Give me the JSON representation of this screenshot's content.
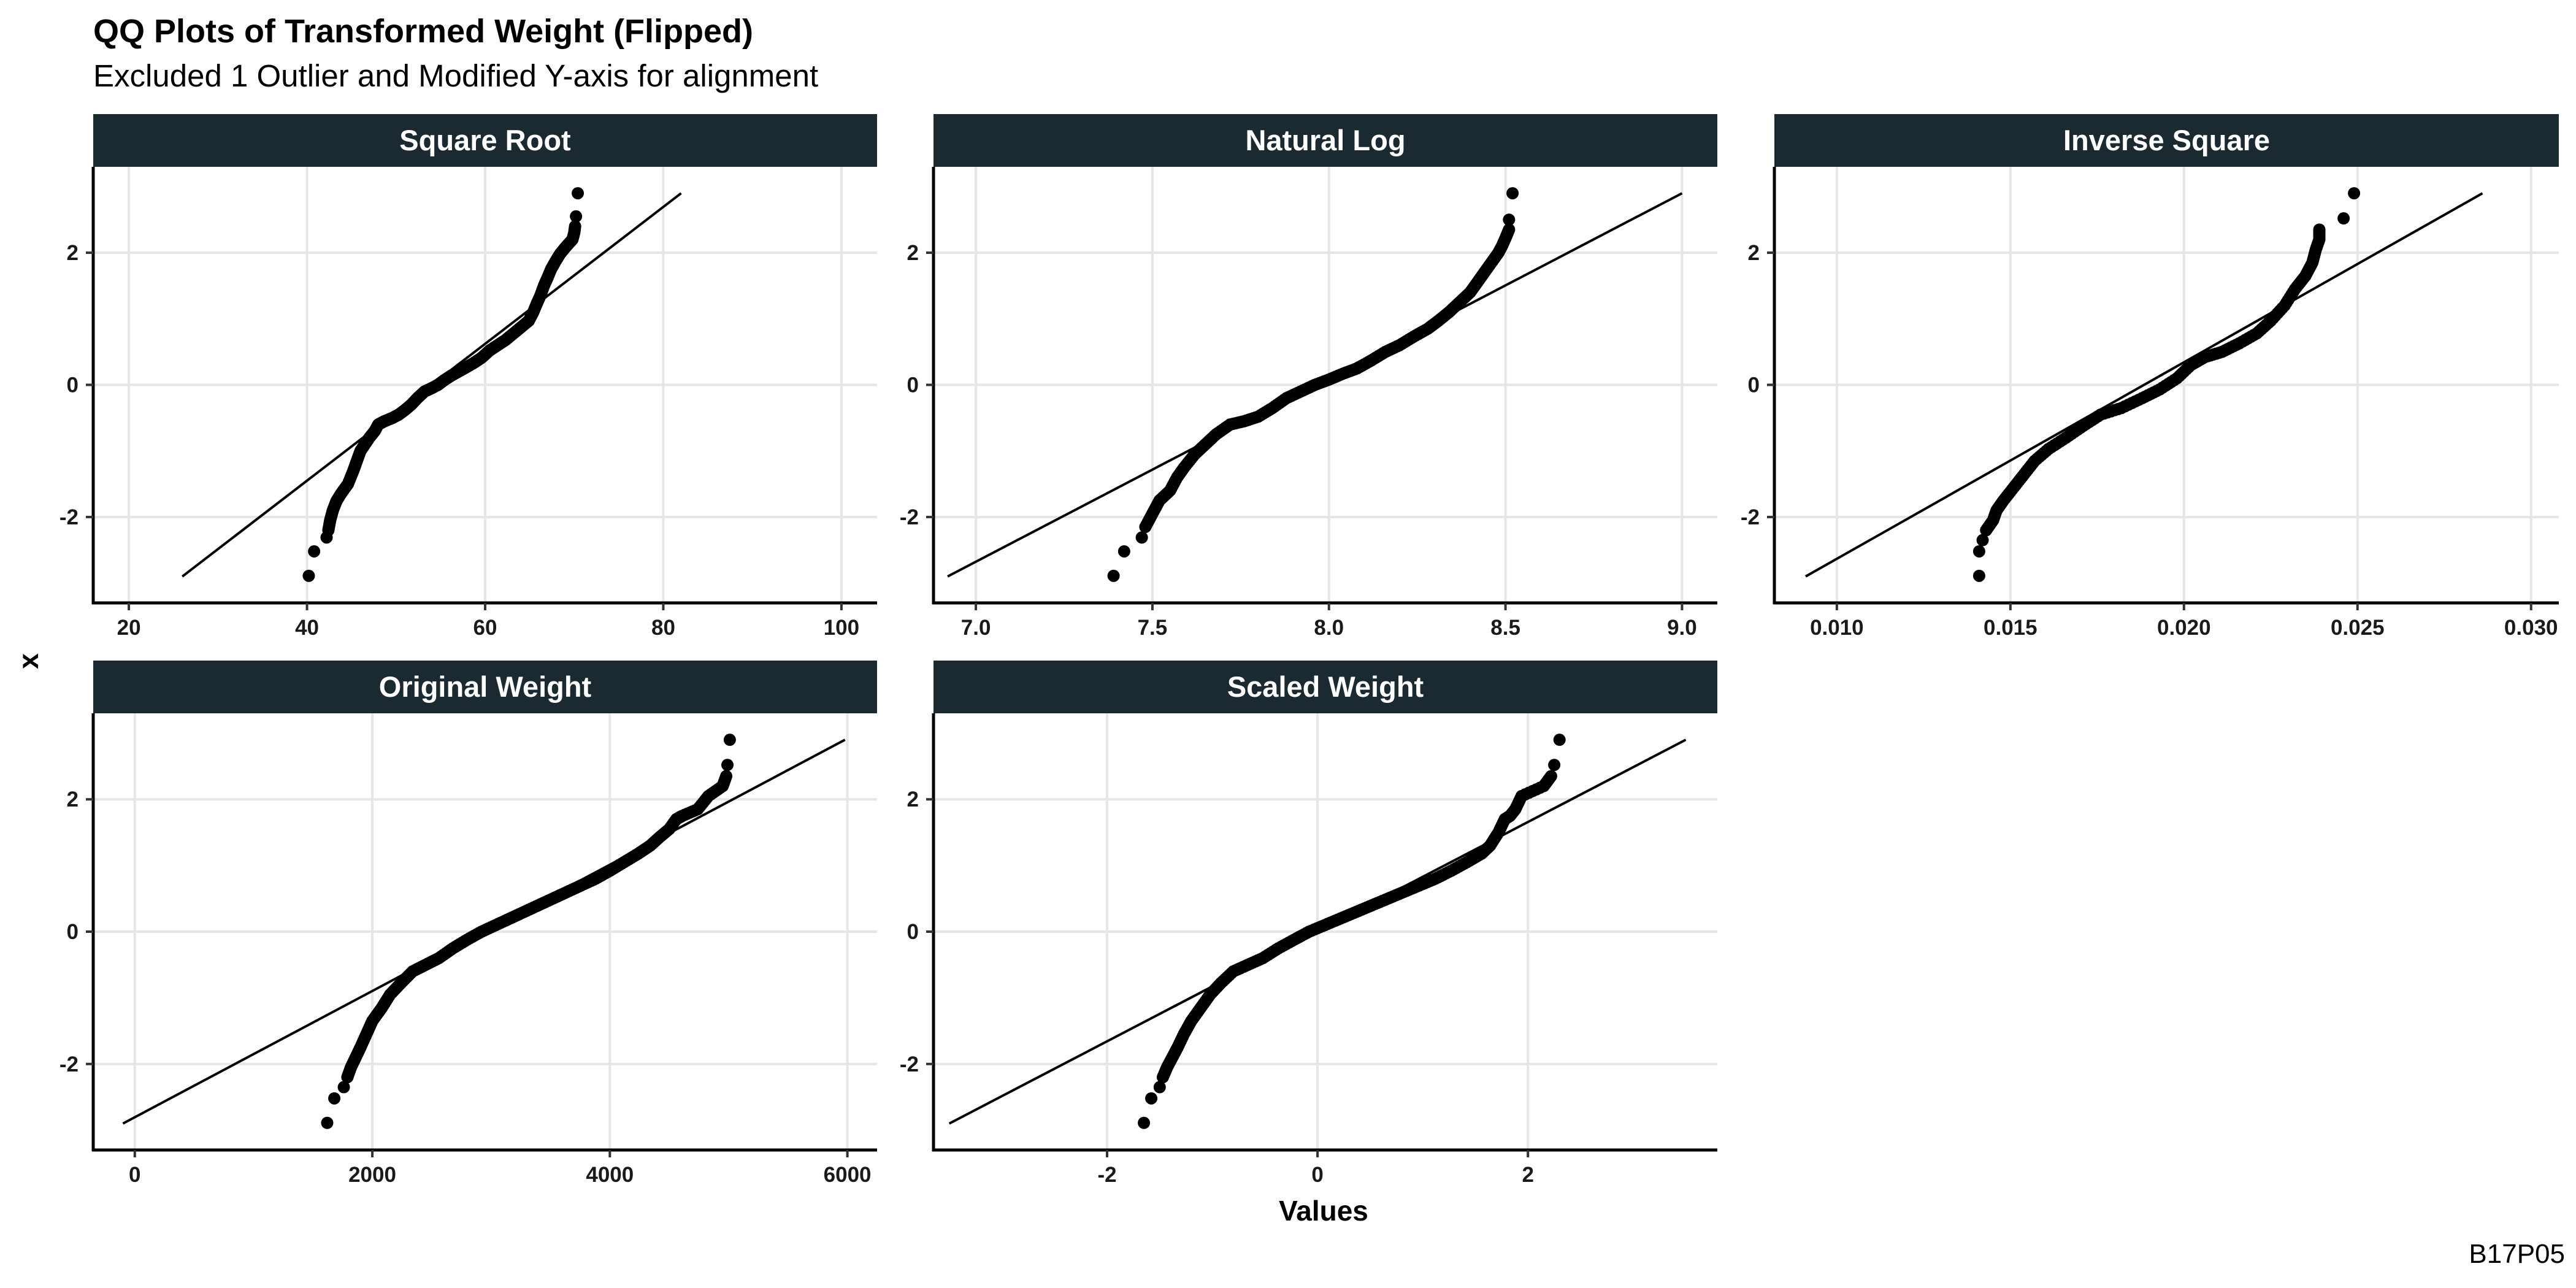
{
  "chart_data": {
    "type": "scatter",
    "title": "QQ Plots of Transformed Weight (Flipped)",
    "subtitle": "Excluded 1 Outlier and Modified Y-axis for alignment",
    "xlabel": "Values",
    "ylabel": "x",
    "caption": "B17P05",
    "grid": true,
    "panels": [
      {
        "name": "Square Root",
        "xlim": [
          16,
          104
        ],
        "ylim": [
          -3.3,
          3.3
        ],
        "xticks": [
          20,
          40,
          60,
          80,
          100
        ],
        "xtick_labels": [
          "20",
          "40",
          "60",
          "80",
          "100"
        ],
        "yticks": [
          -2,
          0,
          2
        ],
        "ytick_labels": [
          "-2",
          "0",
          "2"
        ],
        "line": [
          [
            26,
            -2.9
          ],
          [
            82,
            2.9
          ]
        ],
        "points": [
          [
            40.2,
            -2.89
          ],
          [
            40.8,
            -2.52
          ],
          [
            42.2,
            -2.31
          ],
          [
            42.4,
            -2.2
          ],
          [
            42.6,
            -2.05
          ],
          [
            42.9,
            -1.9
          ],
          [
            43.3,
            -1.76
          ],
          [
            43.8,
            -1.65
          ],
          [
            44.6,
            -1.5
          ],
          [
            45.2,
            -1.3
          ],
          [
            45.6,
            -1.15
          ],
          [
            46.0,
            -1.0
          ],
          [
            46.5,
            -0.9
          ],
          [
            47.0,
            -0.8
          ],
          [
            47.6,
            -0.7
          ],
          [
            48.0,
            -0.6
          ],
          [
            48.7,
            -0.55
          ],
          [
            49.6,
            -0.5
          ],
          [
            50.3,
            -0.45
          ],
          [
            51.0,
            -0.38
          ],
          [
            51.7,
            -0.3
          ],
          [
            52.4,
            -0.2
          ],
          [
            53.2,
            -0.1
          ],
          [
            54.0,
            -0.05
          ],
          [
            54.7,
            0.0
          ],
          [
            55.4,
            0.07
          ],
          [
            56.2,
            0.14
          ],
          [
            57.0,
            0.2
          ],
          [
            57.8,
            0.26
          ],
          [
            58.7,
            0.33
          ],
          [
            59.6,
            0.41
          ],
          [
            60.5,
            0.52
          ],
          [
            61.4,
            0.6
          ],
          [
            62.3,
            0.68
          ],
          [
            63.2,
            0.78
          ],
          [
            64.1,
            0.88
          ],
          [
            64.9,
            0.97
          ],
          [
            65.4,
            1.1
          ],
          [
            65.8,
            1.23
          ],
          [
            66.2,
            1.35
          ],
          [
            66.6,
            1.5
          ],
          [
            67.0,
            1.62
          ],
          [
            67.4,
            1.75
          ],
          [
            67.9,
            1.87
          ],
          [
            68.4,
            1.98
          ],
          [
            69.0,
            2.08
          ],
          [
            69.8,
            2.2
          ],
          [
            70.0,
            2.3
          ],
          [
            70.1,
            2.4
          ],
          [
            70.2,
            2.55
          ],
          [
            70.4,
            2.9
          ]
        ]
      },
      {
        "name": "Natural Log",
        "xlim": [
          6.88,
          9.1
        ],
        "ylim": [
          -3.3,
          3.3
        ],
        "xticks": [
          7.0,
          7.5,
          8.0,
          8.5,
          9.0
        ],
        "xtick_labels": [
          "7.0",
          "7.5",
          "8.0",
          "8.5",
          "9.0"
        ],
        "yticks": [
          -2,
          0,
          2
        ],
        "ytick_labels": [
          "-2",
          "0",
          "2"
        ],
        "line": [
          [
            6.92,
            -2.9
          ],
          [
            9.0,
            2.9
          ]
        ],
        "points": [
          [
            7.39,
            -2.89
          ],
          [
            7.42,
            -2.52
          ],
          [
            7.47,
            -2.31
          ],
          [
            7.48,
            -2.15
          ],
          [
            7.5,
            -1.95
          ],
          [
            7.52,
            -1.75
          ],
          [
            7.55,
            -1.6
          ],
          [
            7.57,
            -1.4
          ],
          [
            7.59,
            -1.25
          ],
          [
            7.62,
            -1.05
          ],
          [
            7.65,
            -0.9
          ],
          [
            7.68,
            -0.75
          ],
          [
            7.72,
            -0.6
          ],
          [
            7.76,
            -0.55
          ],
          [
            7.8,
            -0.48
          ],
          [
            7.84,
            -0.35
          ],
          [
            7.88,
            -0.2
          ],
          [
            7.92,
            -0.1
          ],
          [
            7.96,
            0.0
          ],
          [
            8.0,
            0.08
          ],
          [
            8.04,
            0.17
          ],
          [
            8.08,
            0.25
          ],
          [
            8.12,
            0.37
          ],
          [
            8.16,
            0.5
          ],
          [
            8.2,
            0.6
          ],
          [
            8.24,
            0.73
          ],
          [
            8.28,
            0.85
          ],
          [
            8.31,
            0.97
          ],
          [
            8.34,
            1.1
          ],
          [
            8.37,
            1.25
          ],
          [
            8.4,
            1.4
          ],
          [
            8.42,
            1.55
          ],
          [
            8.44,
            1.7
          ],
          [
            8.46,
            1.85
          ],
          [
            8.48,
            2.0
          ],
          [
            8.49,
            2.1
          ],
          [
            8.5,
            2.22
          ],
          [
            8.51,
            2.35
          ],
          [
            8.51,
            2.5
          ],
          [
            8.52,
            2.9
          ]
        ]
      },
      {
        "name": "Inverse Square",
        "xlim": [
          0.0082,
          0.0308
        ],
        "ylim": [
          -3.3,
          3.3
        ],
        "xticks": [
          0.01,
          0.015,
          0.02,
          0.025,
          0.03
        ],
        "xtick_labels": [
          "0.010",
          "0.015",
          "0.020",
          "0.025",
          "0.030"
        ],
        "yticks": [
          -2,
          0,
          2
        ],
        "ytick_labels": [
          "-2",
          "0",
          "2"
        ],
        "line": [
          [
            0.0091,
            -2.9
          ],
          [
            0.0286,
            2.9
          ]
        ],
        "points": [
          [
            0.0141,
            -2.89
          ],
          [
            0.0141,
            -2.52
          ],
          [
            0.0142,
            -2.35
          ],
          [
            0.0143,
            -2.2
          ],
          [
            0.0145,
            -2.05
          ],
          [
            0.0146,
            -1.9
          ],
          [
            0.0148,
            -1.75
          ],
          [
            0.0151,
            -1.55
          ],
          [
            0.0154,
            -1.35
          ],
          [
            0.0157,
            -1.15
          ],
          [
            0.0161,
            -0.97
          ],
          [
            0.0166,
            -0.8
          ],
          [
            0.0171,
            -0.62
          ],
          [
            0.0176,
            -0.45
          ],
          [
            0.0182,
            -0.35
          ],
          [
            0.0188,
            -0.2
          ],
          [
            0.0193,
            -0.07
          ],
          [
            0.0198,
            0.1
          ],
          [
            0.0202,
            0.3
          ],
          [
            0.0206,
            0.42
          ],
          [
            0.0211,
            0.5
          ],
          [
            0.0216,
            0.63
          ],
          [
            0.0221,
            0.78
          ],
          [
            0.0225,
            0.97
          ],
          [
            0.0229,
            1.2
          ],
          [
            0.0232,
            1.45
          ],
          [
            0.0235,
            1.65
          ],
          [
            0.0237,
            1.85
          ],
          [
            0.0238,
            2.05
          ],
          [
            0.0239,
            2.2
          ],
          [
            0.0239,
            2.35
          ],
          [
            0.0246,
            2.52
          ],
          [
            0.0249,
            2.9
          ]
        ]
      },
      {
        "name": "Original Weight",
        "xlim": [
          -350,
          6250
        ],
        "ylim": [
          -3.3,
          3.3
        ],
        "xticks": [
          0,
          2000,
          4000,
          6000
        ],
        "xtick_labels": [
          "0",
          "2000",
          "4000",
          "6000"
        ],
        "yticks": [
          -2,
          0,
          2
        ],
        "ytick_labels": [
          "-2",
          "0",
          "2"
        ],
        "line": [
          [
            -100,
            -2.9
          ],
          [
            5980,
            2.9
          ]
        ],
        "points": [
          [
            1620,
            -2.89
          ],
          [
            1680,
            -2.52
          ],
          [
            1760,
            -2.35
          ],
          [
            1790,
            -2.2
          ],
          [
            1820,
            -2.05
          ],
          [
            1860,
            -1.9
          ],
          [
            1900,
            -1.75
          ],
          [
            1950,
            -1.55
          ],
          [
            2000,
            -1.35
          ],
          [
            2080,
            -1.15
          ],
          [
            2150,
            -0.95
          ],
          [
            2240,
            -0.78
          ],
          [
            2340,
            -0.6
          ],
          [
            2450,
            -0.5
          ],
          [
            2560,
            -0.4
          ],
          [
            2680,
            -0.25
          ],
          [
            2800,
            -0.12
          ],
          [
            2920,
            0.0
          ],
          [
            3040,
            0.1
          ],
          [
            3160,
            0.2
          ],
          [
            3280,
            0.3
          ],
          [
            3400,
            0.4
          ],
          [
            3520,
            0.5
          ],
          [
            3640,
            0.6
          ],
          [
            3760,
            0.7
          ],
          [
            3880,
            0.8
          ],
          [
            4000,
            0.92
          ],
          [
            4120,
            1.05
          ],
          [
            4240,
            1.18
          ],
          [
            4340,
            1.3
          ],
          [
            4420,
            1.43
          ],
          [
            4500,
            1.55
          ],
          [
            4560,
            1.7
          ],
          [
            4610,
            1.75
          ],
          [
            4740,
            1.85
          ],
          [
            4830,
            2.05
          ],
          [
            4950,
            2.2
          ],
          [
            4980,
            2.35
          ],
          [
            4990,
            2.52
          ],
          [
            5010,
            2.9
          ]
        ]
      },
      {
        "name": "Scaled Weight",
        "xlim": [
          -3.65,
          3.8
        ],
        "ylim": [
          -3.3,
          3.3
        ],
        "xticks": [
          -2,
          0,
          2
        ],
        "xtick_labels": [
          "-2",
          "0",
          "2"
        ],
        "yticks": [
          -2,
          0,
          2
        ],
        "ytick_labels": [
          "-2",
          "0",
          "2"
        ],
        "line": [
          [
            -3.5,
            -2.9
          ],
          [
            3.5,
            2.9
          ]
        ],
        "points": [
          [
            -1.65,
            -2.89
          ],
          [
            -1.58,
            -2.52
          ],
          [
            -1.5,
            -2.35
          ],
          [
            -1.47,
            -2.2
          ],
          [
            -1.43,
            -2.05
          ],
          [
            -1.38,
            -1.9
          ],
          [
            -1.33,
            -1.75
          ],
          [
            -1.27,
            -1.55
          ],
          [
            -1.2,
            -1.35
          ],
          [
            -1.11,
            -1.15
          ],
          [
            -1.02,
            -0.95
          ],
          [
            -0.92,
            -0.78
          ],
          [
            -0.8,
            -0.6
          ],
          [
            -0.66,
            -0.5
          ],
          [
            -0.52,
            -0.4
          ],
          [
            -0.37,
            -0.25
          ],
          [
            -0.22,
            -0.12
          ],
          [
            -0.08,
            0.0
          ],
          [
            0.07,
            0.1
          ],
          [
            0.22,
            0.2
          ],
          [
            0.37,
            0.3
          ],
          [
            0.52,
            0.4
          ],
          [
            0.67,
            0.5
          ],
          [
            0.82,
            0.6
          ],
          [
            0.97,
            0.7
          ],
          [
            1.12,
            0.8
          ],
          [
            1.27,
            0.92
          ],
          [
            1.42,
            1.05
          ],
          [
            1.56,
            1.18
          ],
          [
            1.64,
            1.3
          ],
          [
            1.72,
            1.5
          ],
          [
            1.78,
            1.7
          ],
          [
            1.83,
            1.75
          ],
          [
            1.88,
            1.85
          ],
          [
            1.94,
            2.05
          ],
          [
            2.15,
            2.2
          ],
          [
            2.22,
            2.35
          ],
          [
            2.25,
            2.52
          ],
          [
            2.3,
            2.9
          ]
        ]
      }
    ]
  }
}
